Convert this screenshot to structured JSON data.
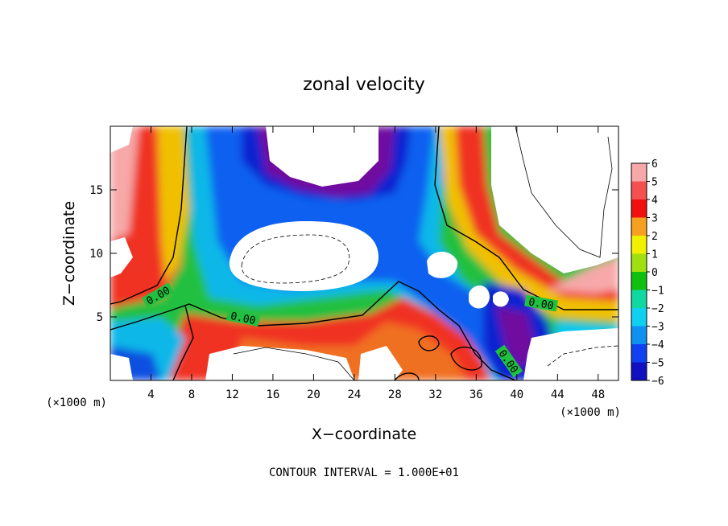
{
  "chart_data": {
    "type": "heatmap",
    "title": "zonal velocity",
    "xlabel": "X−coordinate",
    "ylabel": "Z−coordinate",
    "x_unit_note": "(×1000 m)",
    "z_unit_note": "(×1000 m)",
    "xlim": [
      0,
      50
    ],
    "ylim": [
      0,
      20
    ],
    "x_ticks": [
      4,
      8,
      12,
      16,
      20,
      24,
      28,
      32,
      36,
      40,
      44,
      48
    ],
    "x_tick_labels": [
      "4",
      "8",
      "12",
      "16",
      "20",
      "24",
      "28",
      "32",
      "36",
      "40",
      "44",
      "48"
    ],
    "y_ticks": [
      5,
      10,
      15
    ],
    "y_tick_labels": [
      "5",
      "10",
      "15"
    ],
    "colorbar": {
      "levels": [
        6,
        5,
        4,
        3,
        2,
        1,
        0,
        -1,
        -2,
        -3,
        -4,
        -5,
        -6
      ],
      "labels": [
        "6",
        "5",
        "4",
        "3",
        "2",
        "1",
        "0",
        "−1",
        "−2",
        "−3",
        "−4",
        "−5",
        "−6"
      ],
      "colors": [
        "#f7a8a8",
        "#f45050",
        "#f01010",
        "#f5a020",
        "#f0f000",
        "#a0e010",
        "#10c010",
        "#10d8a0",
        "#10d0f0",
        "#1090f0",
        "#1040f0",
        "#1010c0",
        "#7010a0"
      ]
    },
    "contour_labels": [
      "0.00",
      "0.00",
      "0.00",
      "0.00"
    ],
    "footer": "CONTOUR INTERVAL = 1.000E+01",
    "grid": false,
    "legend": "right colorbar"
  }
}
